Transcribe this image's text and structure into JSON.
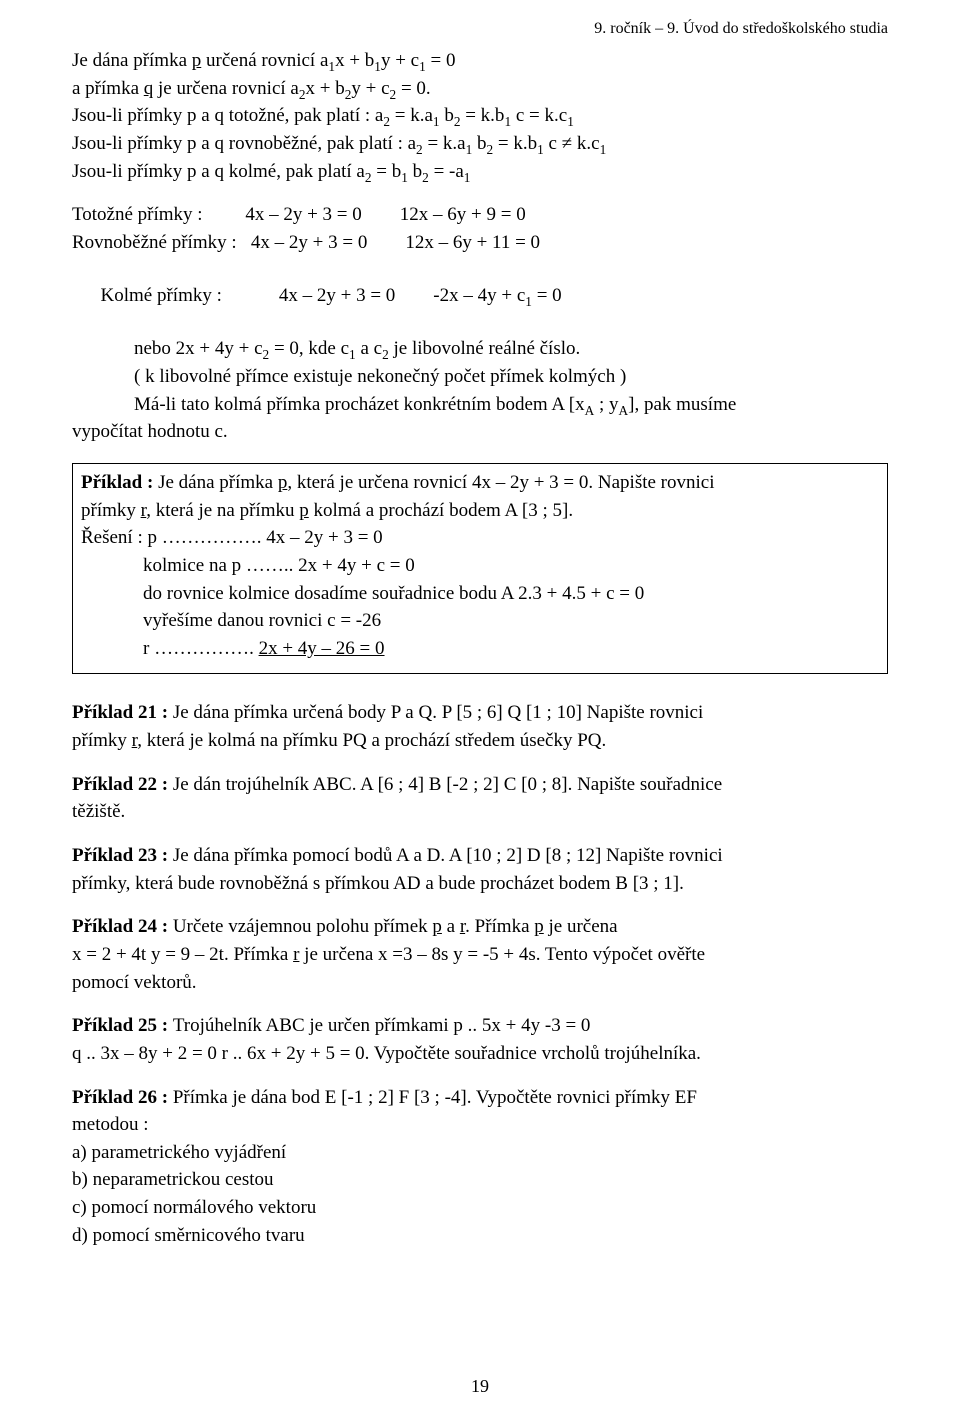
{
  "header": "9. ročník – 9.  Úvod do středoškolského studia",
  "intro": {
    "l1a": "Je dána přímka ",
    "l1b": " určená rovnicí   a",
    "l1c": "x + b",
    "l1d": "y + c",
    "l1e": " = 0",
    "l2a": "a přímka ",
    "l2b": " je určena rovnicí          a",
    "l2c": "x + b",
    "l2d": "y + c",
    "l2e": " = 0.",
    "l3a": "Jsou-li přímky p a q totožné, pak platí : a",
    "l3b": " = k.a",
    "l3c": "    b",
    "l3d": " = k.b",
    "l3e": "    c = k.c",
    "l4a": "Jsou-li přímky p a q rovnoběžné, pak platí : a",
    "l4b": " = k.a",
    "l4c": "    b",
    "l4d": " = k.b",
    "l4e": "    c ≠ k.c",
    "l5a": "Jsou-li přímky p a q kolmé, pak platí a",
    "l5b": " = b",
    "l5c": "    b",
    "l5d": " = -a"
  },
  "types": {
    "l1": "Totožné přímky :         4x – 2y + 3 = 0        12x – 6y + 9 = 0",
    "l2": "Rovnoběžné přímky :   4x – 2y + 3 = 0        12x – 6y + 11 = 0",
    "l3a": "Kolmé přímky :            4x – 2y + 3 = 0        -2x – 4y + c",
    "l3b": " = 0",
    "l4a": "nebo 2x + 4y + c",
    "l4b": " = 0, kde c",
    "l4c": " a c",
    "l4d": " je libovolné reálné číslo.",
    "l5": "( k libovolné přímce existuje nekonečný počet přímek kolmých )",
    "l6a": "Má-li tato kolmá přímka procházet konkrétním bodem A [x",
    "l6b": " ; y",
    "l6c": "], pak          musíme",
    "l7": "vypočítat hodnotu c."
  },
  "example": {
    "l1a": "Příklad : ",
    "l1b": "Je dána přímka ",
    "l1c": ", která je určena rovnicí 4x – 2y + 3 = 0. Napište rovnici",
    "l2a": "přímky ",
    "l2b": ", která je na přímku ",
    "l2c": " kolmá a prochází bodem A [3 ; 5].",
    "l3": "Řešení : p ……………. 4x – 2y + 3 = 0",
    "l4": "kolmice na p …….. 2x + 4y + c = 0",
    "l5": "do rovnice kolmice dosadíme souřadnice bodu A  2.3 + 4.5 + c = 0",
    "l6": "vyřešíme danou rovnici    c = -26",
    "l7a": "r ……………. ",
    "l7b": "2x + 4y – 26 = 0"
  },
  "ex21": {
    "title": "Příklad 21 : ",
    "l1": "Je dána přímka určená body P a Q. P [5 ; 6]  Q [1 ; 10] Napište rovnici",
    "l2a": "přímky ",
    "l2b": ", která je kolmá na přímku PQ a prochází středem úsečky PQ."
  },
  "ex22": {
    "title": "Příklad 22 : ",
    "l1": "Je dán trojúhelník ABC. A [6 ; 4]  B [-2 ; 2]  C [0 ; 8]. Napište souřadnice",
    "l2": "těžiště."
  },
  "ex23": {
    "title": "Příklad 23 : ",
    "l1": "Je dána přímka pomocí bodů A a D.  A [10 ; 2]  D [8 ; 12] Napište rovnici",
    "l2": "přímky, která bude rovnoběžná s přímkou AD a bude procházet bodem B [3 ; 1]."
  },
  "ex24": {
    "title": "Příklad 24 : ",
    "l1a": " Určete vzájemnou polohu přímek ",
    "l1b": " a ",
    "l1c": ". Přímka ",
    "l1d": " je určena",
    "l2a": "x = 2 + 4t   y = 9 – 2t.    Přímka ",
    "l2b": " je určena x =3 – 8s   y = -5 + 4s. Tento výpočet ověřte",
    "l3": "pomocí vektorů."
  },
  "ex25": {
    "title": "Příklad 25 : ",
    "l1": "Trojúhelník ABC je určen přímkami p .. 5x + 4y -3 = 0",
    "l2": "q .. 3x – 8y + 2 = 0  r .. 6x + 2y + 5 = 0. Vypočtěte souřadnice vrcholů trojúhelníka."
  },
  "ex26": {
    "title": "Příklad 26 : ",
    "l1": "Přímka je dána bod  E [-1 ; 2]   F [3 ; -4].  Vypočtěte rovnici přímky EF",
    "l2": "metodou :",
    "a": "a) parametrického vyjádření",
    "b": "b) neparametrickou cestou",
    "c": "c) pomocí normálového vektoru",
    "d": "d) pomocí směrnicového tvaru"
  },
  "pageNumber": "19",
  "sym": {
    "p": "p",
    "q": "q",
    "r": "r",
    "s1": "1",
    "s2": "2",
    "sA": "A"
  }
}
